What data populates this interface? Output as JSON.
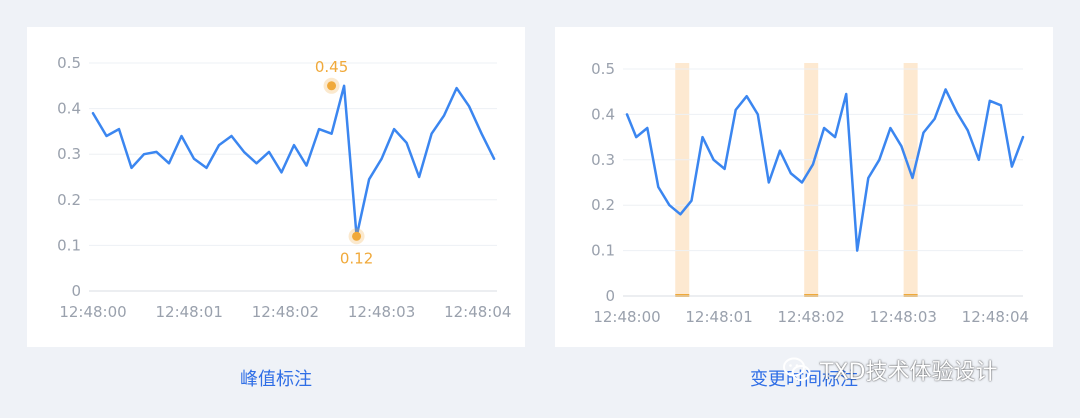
{
  "captions": [
    "峰值标注",
    "变更时间标注"
  ],
  "watermark": "TXD技术体验设计",
  "colors": {
    "line": "#3b86f0",
    "accent": "#f0a93a",
    "band": "#fde9d1",
    "grid": "#edf0f4",
    "axis": "#d9dde3",
    "tick": "#9aa1ad"
  },
  "chart_data": [
    {
      "type": "line",
      "title": "",
      "xlabel": "",
      "ylabel": "",
      "x_ticks": [
        "12:48:00",
        "12:48:01",
        "12:48:02",
        "12:48:03",
        "12:48:04"
      ],
      "y_ticks": [
        "0",
        "0.1",
        "0.2",
        "0.3",
        "0.4",
        "0.5"
      ],
      "ylim": [
        0,
        0.5
      ],
      "xlim": [
        0,
        4.2
      ],
      "grid": true,
      "series": [
        {
          "x": [
            0,
            0.14,
            0.27,
            0.4,
            0.53,
            0.66,
            0.79,
            0.92,
            1.05,
            1.18,
            1.31,
            1.44,
            1.57,
            1.7,
            1.83,
            1.96,
            2.09,
            2.22,
            2.35,
            2.48,
            2.61,
            2.74,
            2.87,
            3.0,
            3.13,
            3.26,
            3.39,
            3.52,
            3.65,
            3.78,
            3.91,
            4.04,
            4.17
          ],
          "y": [
            0.39,
            0.34,
            0.355,
            0.27,
            0.3,
            0.305,
            0.28,
            0.34,
            0.29,
            0.27,
            0.32,
            0.34,
            0.305,
            0.28,
            0.305,
            0.26,
            0.32,
            0.275,
            0.355,
            0.345,
            0.45,
            0.12,
            0.245,
            0.29,
            0.355,
            0.325,
            0.25,
            0.345,
            0.385,
            0.445,
            0.405,
            0.345,
            0.29
          ]
        }
      ],
      "annotations": [
        {
          "x": 2.48,
          "y": 0.45,
          "label": "0.45",
          "position": "above"
        },
        {
          "x": 2.74,
          "y": 0.12,
          "label": "0.12",
          "position": "below"
        }
      ]
    },
    {
      "type": "line",
      "title": "",
      "xlabel": "",
      "ylabel": "",
      "x_ticks": [
        "12:48:00",
        "12:48:01",
        "12:48:02",
        "12:48:03",
        "12:48:04"
      ],
      "y_ticks": [
        "0",
        "0.1",
        "0.2",
        "0.3",
        "0.4",
        "0.5"
      ],
      "ylim": [
        0,
        0.5
      ],
      "xlim": [
        0,
        4.3
      ],
      "grid": true,
      "series": [
        {
          "x": [
            0,
            0.1,
            0.22,
            0.34,
            0.46,
            0.58,
            0.7,
            0.82,
            0.94,
            1.06,
            1.18,
            1.3,
            1.42,
            1.54,
            1.66,
            1.78,
            1.9,
            2.02,
            2.14,
            2.26,
            2.38,
            2.5,
            2.62,
            2.74,
            2.86,
            2.98,
            3.1,
            3.22,
            3.34,
            3.46,
            3.58,
            3.7,
            3.82,
            3.94,
            4.06,
            4.18,
            4.3
          ],
          "y": [
            0.4,
            0.35,
            0.37,
            0.24,
            0.2,
            0.18,
            0.21,
            0.35,
            0.3,
            0.28,
            0.41,
            0.44,
            0.4,
            0.25,
            0.32,
            0.27,
            0.25,
            0.29,
            0.37,
            0.35,
            0.445,
            0.1,
            0.26,
            0.3,
            0.37,
            0.33,
            0.26,
            0.36,
            0.39,
            0.455,
            0.405,
            0.365,
            0.3,
            0.43,
            0.42,
            0.285,
            0.35
          ]
        }
      ],
      "markers": [
        0.6,
        2.0,
        3.08
      ]
    }
  ]
}
